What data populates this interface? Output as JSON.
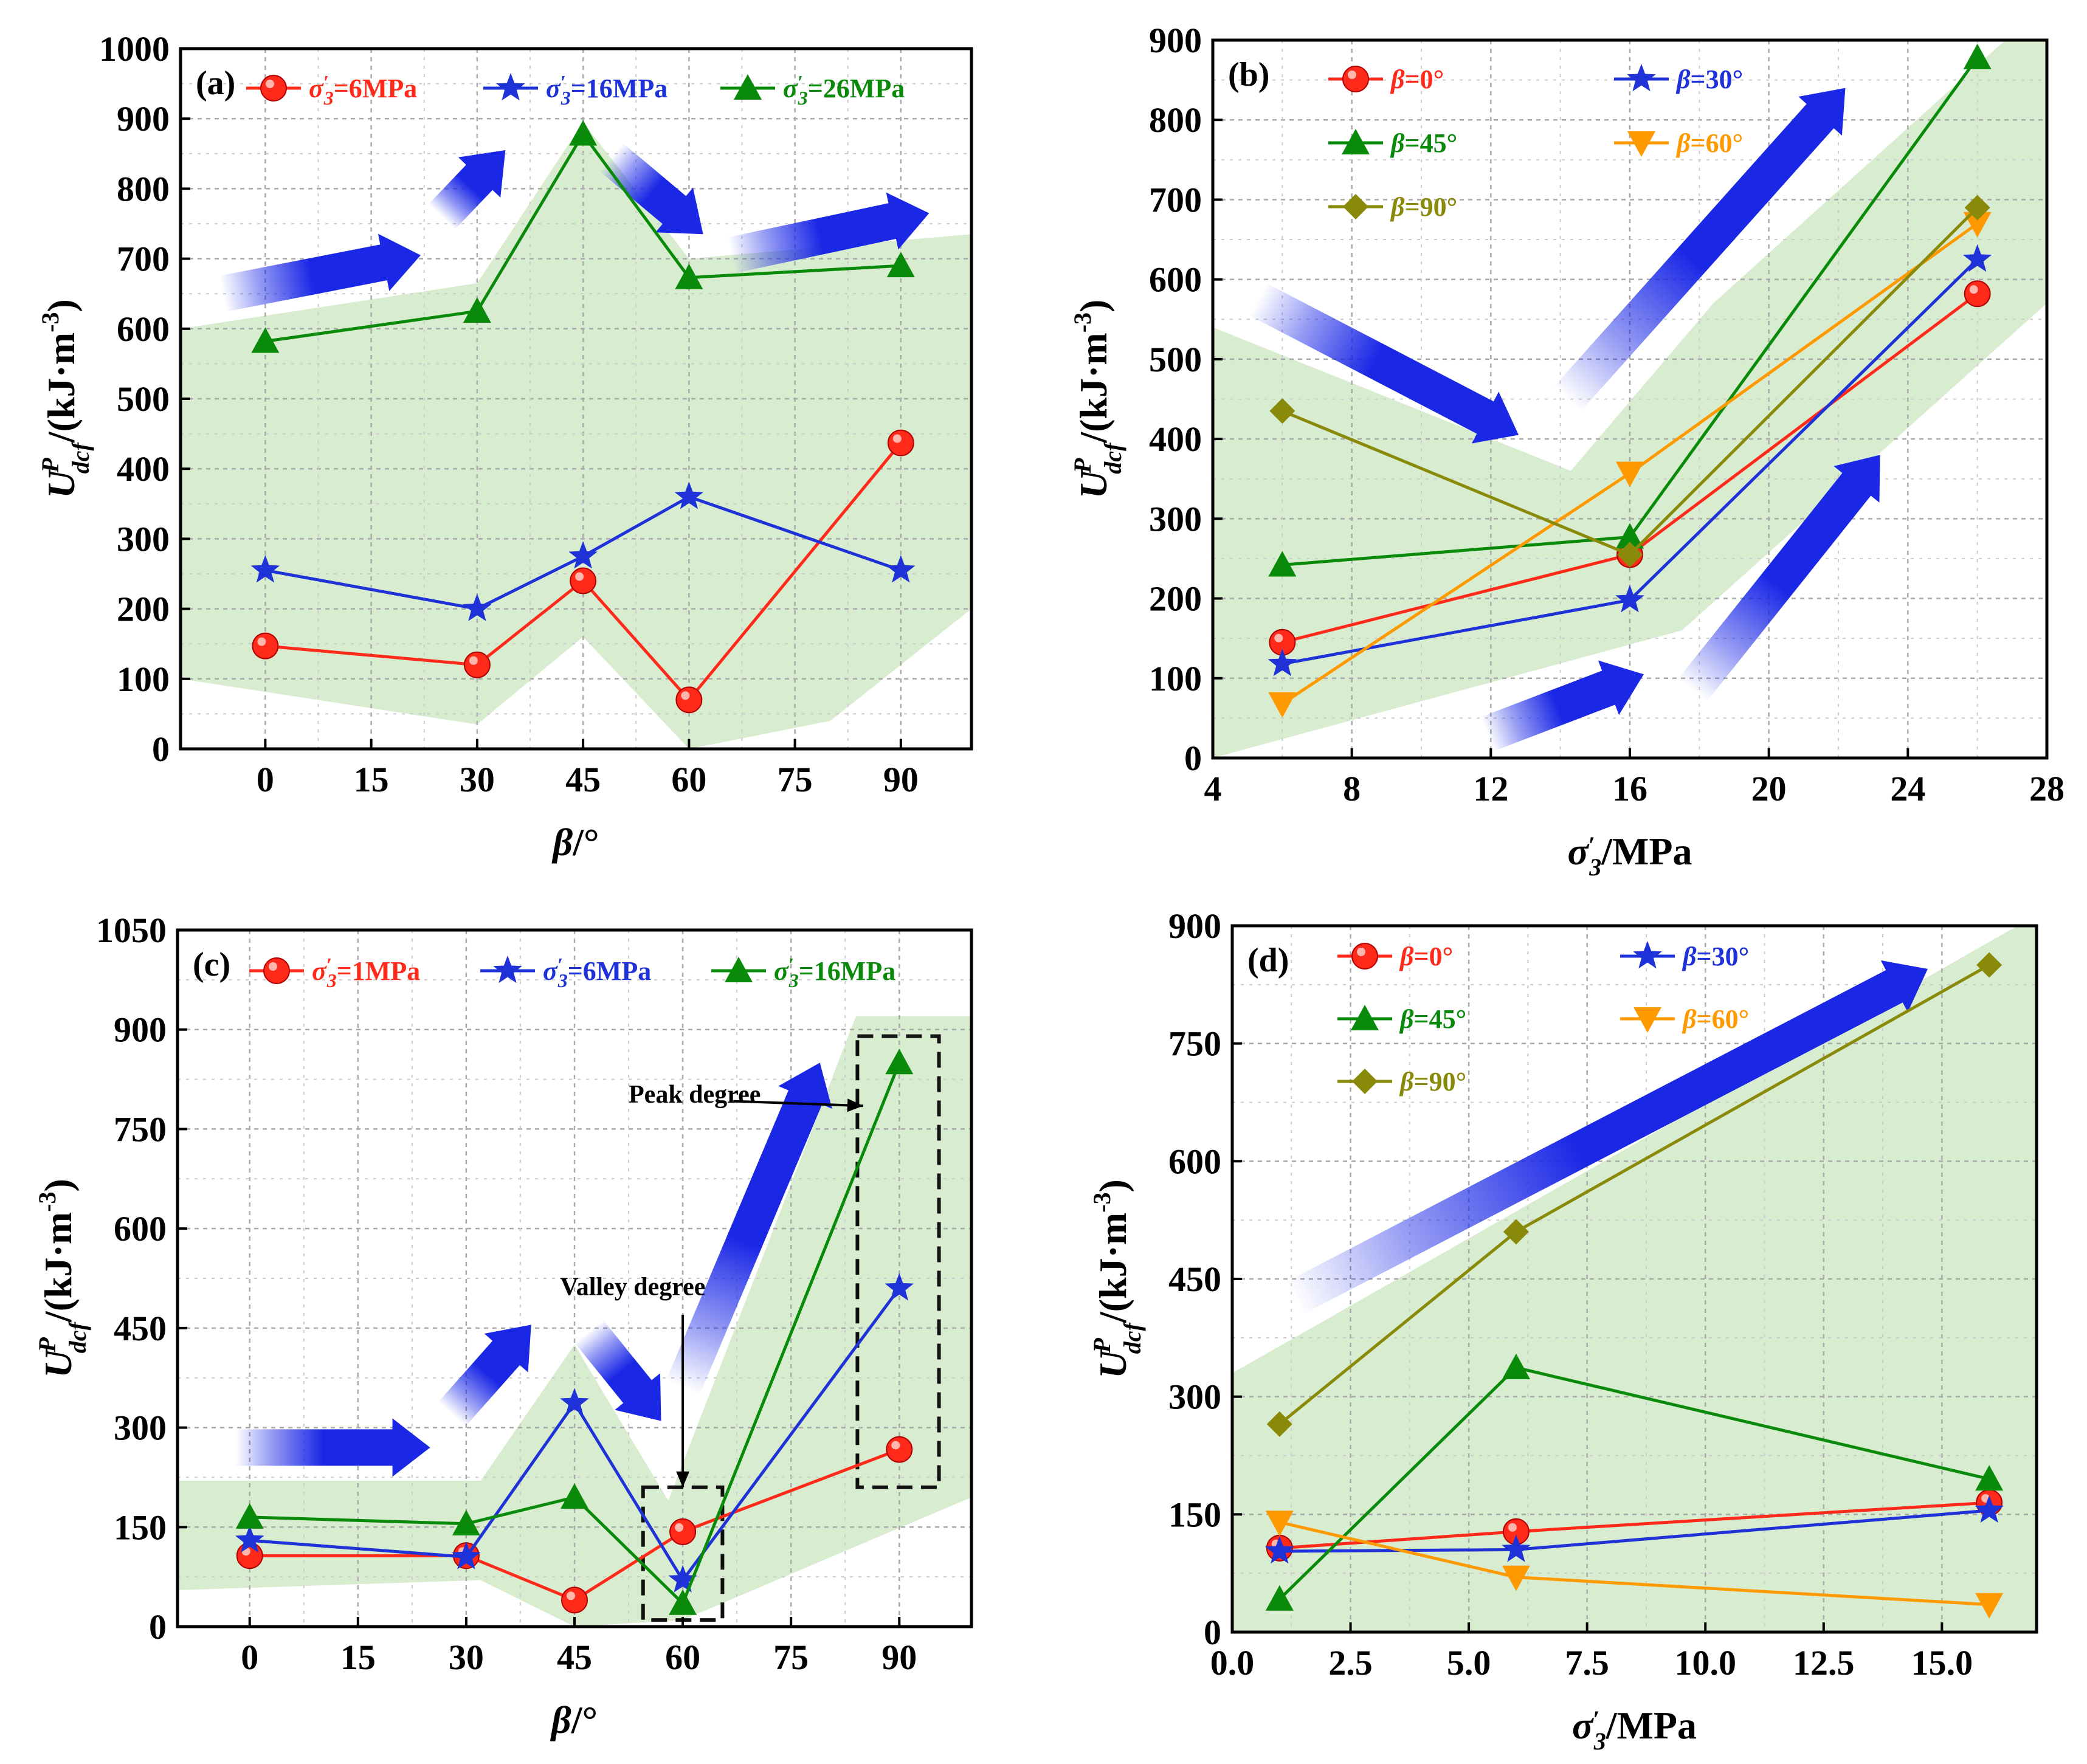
{
  "figure": {
    "colors": {
      "red": "#ff2a1a",
      "blue": "#1e32d8",
      "green": "#0a8a0a",
      "orange": "#ff9900",
      "olive": "#8a8a0a",
      "band": "#d8ecd0",
      "arrow": "#1a28e6",
      "grid": "#aaaaaa"
    },
    "panels": [
      {
        "id": "a",
        "label": "(a)",
        "xlabel": "β/°",
        "ylabel": "U^P_dcf/(kJ·m^-3)",
        "chart_data": {
          "type": "line",
          "xlim": [
            -12,
            100
          ],
          "ylim": [
            0,
            1000
          ],
          "xticks": [
            0,
            15,
            30,
            45,
            60,
            75,
            90
          ],
          "yticks": [
            0,
            100,
            200,
            300,
            400,
            500,
            600,
            700,
            800,
            900,
            1000
          ],
          "grid": true,
          "legend_position": "top",
          "legend_columns": 3,
          "series": [
            {
              "name": "σ′3=6MPa",
              "color": "red",
              "marker": "circle",
              "x": [
                0,
                30,
                45,
                60,
                90
              ],
              "y": [
                147,
                120,
                240,
                70,
                437
              ]
            },
            {
              "name": "σ′3=16MPa",
              "color": "blue",
              "marker": "star",
              "x": [
                0,
                30,
                45,
                60,
                90
              ],
              "y": [
                255,
                200,
                275,
                360,
                255
              ]
            },
            {
              "name": "σ′3=26MPa",
              "color": "green",
              "marker": "triangle-up",
              "x": [
                0,
                30,
                45,
                60,
                90
              ],
              "y": [
                582,
                625,
                878,
                673,
                690
              ]
            }
          ],
          "band": [
            [
              -12,
              600
            ],
            [
              30,
              665
            ],
            [
              45,
              895
            ],
            [
              60,
              700
            ],
            [
              100,
              735
            ],
            [
              100,
              200
            ],
            [
              80,
              40
            ],
            [
              60,
              0
            ],
            [
              45,
              160
            ],
            [
              30,
              35
            ],
            [
              -12,
              100
            ]
          ],
          "arrows": [
            [
              -6,
              650,
              22,
              705
            ],
            [
              25,
              760,
              34,
              855
            ],
            [
              49,
              845,
              62,
              735
            ],
            [
              66,
              705,
              94,
              765
            ]
          ],
          "boxes": [],
          "annotations": []
        }
      },
      {
        "id": "b",
        "label": "(b)",
        "xlabel": "σ′3/MPa",
        "ylabel": "U^P_dcf/(kJ·m^-3)",
        "chart_data": {
          "type": "line",
          "xlim": [
            4,
            28
          ],
          "ylim": [
            0,
            900
          ],
          "xticks": [
            4,
            8,
            12,
            16,
            20,
            24,
            28
          ],
          "yticks": [
            0,
            100,
            200,
            300,
            400,
            500,
            600,
            700,
            800,
            900
          ],
          "grid": true,
          "legend_position": "top-left",
          "legend_columns": 2,
          "series": [
            {
              "name": "β=0°",
              "color": "red",
              "marker": "circle",
              "x": [
                6,
                16,
                26
              ],
              "y": [
                145,
                255,
                582
              ]
            },
            {
              "name": "β=30°",
              "color": "blue",
              "marker": "star",
              "x": [
                6,
                16,
                26
              ],
              "y": [
                118,
                198,
                625
              ]
            },
            {
              "name": "β=45°",
              "color": "green",
              "marker": "triangle-up",
              "x": [
                6,
                16,
                26
              ],
              "y": [
                242,
                277,
                878
              ]
            },
            {
              "name": "β=60°",
              "color": "orange",
              "marker": "triangle-down",
              "x": [
                6,
                16,
                26
              ],
              "y": [
                68,
                357,
                670
              ]
            },
            {
              "name": "β=90°",
              "color": "olive",
              "marker": "diamond",
              "x": [
                6,
                16,
                26
              ],
              "y": [
                435,
                255,
                690
              ]
            }
          ],
          "band": [
            [
              4,
              540
            ],
            [
              14.3,
              360
            ],
            [
              18.4,
              570
            ],
            [
              26.8,
              900
            ],
            [
              28,
              900
            ],
            [
              28,
              570
            ],
            [
              17.5,
              160
            ],
            [
              4,
              0
            ]
          ],
          "arrows": [
            [
              5.3,
              575,
              12.8,
              405
            ],
            [
              14.2,
              450,
              22.2,
              840
            ],
            [
              17.8,
              85,
              23.2,
              380
            ],
            [
              11.9,
              30,
              16.4,
              105
            ]
          ],
          "boxes": [],
          "annotations": []
        }
      },
      {
        "id": "c",
        "label": "(c)",
        "xlabel": "β/°",
        "ylabel": "U^P_dcf/(kJ·m^-3)",
        "chart_data": {
          "type": "line",
          "xlim": [
            -10,
            100
          ],
          "ylim": [
            0,
            1050
          ],
          "xticks": [
            0,
            15,
            30,
            45,
            60,
            75,
            90
          ],
          "yticks": [
            0,
            150,
            300,
            450,
            600,
            750,
            900,
            1050
          ],
          "grid": true,
          "legend_position": "top",
          "legend_columns": 3,
          "series": [
            {
              "name": "σ′3=1MPa",
              "color": "red",
              "marker": "circle",
              "x": [
                0,
                30,
                45,
                60,
                90
              ],
              "y": [
                107,
                107,
                40,
                143,
                267
              ]
            },
            {
              "name": "σ′3=6MPa",
              "color": "blue",
              "marker": "star",
              "x": [
                0,
                30,
                45,
                60,
                90
              ],
              "y": [
                130,
                105,
                337,
                70,
                510
              ]
            },
            {
              "name": "σ′3=16MPa",
              "color": "green",
              "marker": "triangle-up",
              "x": [
                0,
                30,
                45,
                60,
                90
              ],
              "y": [
                165,
                155,
                195,
                35,
                850
              ]
            },
            {
              "name": "",
              "color": "green",
              "marker": "none",
              "x": [],
              "y": []
            }
          ],
          "band": [
            [
              -10,
              220
            ],
            [
              32,
              220
            ],
            [
              45,
              425
            ],
            [
              58,
              190
            ],
            [
              84,
              920
            ],
            [
              100,
              920
            ],
            [
              100,
              195
            ],
            [
              60,
              10
            ],
            [
              45,
              0
            ],
            [
              32,
              70
            ],
            [
              -10,
              55
            ]
          ],
          "arrows": [
            [
              -2,
              270,
              25,
              270
            ],
            [
              28,
              320,
              39,
              455
            ],
            [
              47,
              445,
              57,
              310
            ],
            [
              60,
              360,
              79,
              850
            ]
          ],
          "boxes": [
            [
              54.5,
              10,
              65.5,
              210
            ],
            [
              84.2,
              210,
              95.5,
              890
            ]
          ],
          "annotations": [
            {
              "key": "peak",
              "text": "Peak degree",
              "tx": 52.5,
              "ty": 790,
              "x1": 67,
              "y1": 792,
              "x2": 85,
              "y2": 785
            },
            {
              "key": "valley",
              "text": "Valley degree",
              "tx": 43,
              "ty": 500,
              "x1": 60,
              "y1": 470,
              "x2": 60,
              "y2": 210
            }
          ]
        }
      },
      {
        "id": "d",
        "label": "(d)",
        "xlabel": "σ′3/MPa",
        "ylabel": "U^P_dcf/(kJ·m^-3)",
        "chart_data": {
          "type": "line",
          "xlim": [
            0,
            17
          ],
          "ylim": [
            0,
            900
          ],
          "xticks": [
            0,
            2.5,
            5,
            7.5,
            10,
            12.5,
            15
          ],
          "xticklabels": [
            "0.0",
            "2.5",
            "5.0",
            "7.5",
            "10.0",
            "12.5",
            "15.0"
          ],
          "yticks": [
            0,
            150,
            300,
            450,
            600,
            750,
            900
          ],
          "grid": true,
          "legend_position": "top-left",
          "legend_columns": 2,
          "series": [
            {
              "name": "β=0°",
              "color": "red",
              "marker": "circle",
              "x": [
                1,
                6,
                16
              ],
              "y": [
                107,
                128,
                165
              ]
            },
            {
              "name": "β=30°",
              "color": "blue",
              "marker": "star",
              "x": [
                1,
                6,
                16
              ],
              "y": [
                103,
                105,
                155
              ]
            },
            {
              "name": "β=45°",
              "color": "green",
              "marker": "triangle-up",
              "x": [
                1,
                6,
                16
              ],
              "y": [
                42,
                337,
                195
              ]
            },
            {
              "name": "β=60°",
              "color": "orange",
              "marker": "triangle-down",
              "x": [
                1,
                6,
                16
              ],
              "y": [
                140,
                70,
                35
              ]
            },
            {
              "name": "β=90°",
              "color": "olive",
              "marker": "diamond",
              "x": [
                1,
                6,
                16
              ],
              "y": [
                265,
                510,
                850
              ]
            }
          ],
          "band": [
            [
              0,
              330
            ],
            [
              16.6,
              900
            ],
            [
              17,
              900
            ],
            [
              17,
              0
            ],
            [
              0,
              0
            ]
          ],
          "arrows": [
            [
              1.3,
              425,
              14.7,
              845
            ]
          ],
          "boxes": [],
          "annotations": []
        }
      }
    ]
  }
}
